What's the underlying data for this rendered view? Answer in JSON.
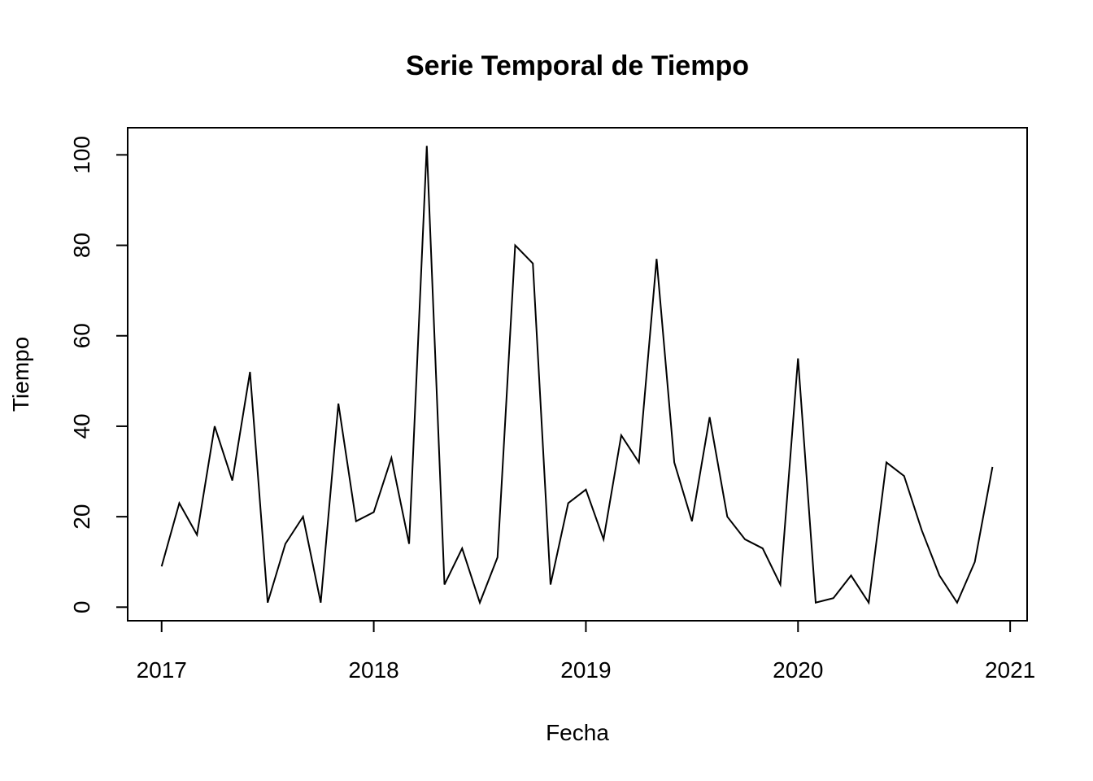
{
  "chart_data": {
    "type": "line",
    "title": "Serie Temporal de Tiempo",
    "xlabel": "Fecha",
    "ylabel": "Tiempo",
    "xlim": [
      2016.84,
      2021.08
    ],
    "ylim": [
      -3,
      106
    ],
    "x_ticks": [
      2017,
      2018,
      2019,
      2020,
      2021
    ],
    "x_tick_labels": [
      "2017",
      "2018",
      "2019",
      "2020",
      "2021"
    ],
    "y_ticks": [
      0,
      20,
      40,
      60,
      80,
      100
    ],
    "y_tick_labels": [
      "0",
      "20",
      "40",
      "60",
      "80",
      "100"
    ],
    "grid": false,
    "legend": "none",
    "series": [
      {
        "start": [
          2017,
          1
        ],
        "frequency": 12,
        "values": [
          9,
          23,
          16,
          40,
          28,
          52,
          1,
          14,
          20,
          1,
          45,
          19,
          21,
          33,
          14,
          102,
          5,
          13,
          1,
          11,
          80,
          76,
          5,
          23,
          26,
          15,
          38,
          32,
          77,
          32,
          19,
          42,
          20,
          15,
          13,
          5,
          55,
          1,
          2,
          7,
          1,
          32,
          29,
          17,
          7,
          1,
          10,
          31
        ],
        "color": "#000000"
      }
    ]
  }
}
